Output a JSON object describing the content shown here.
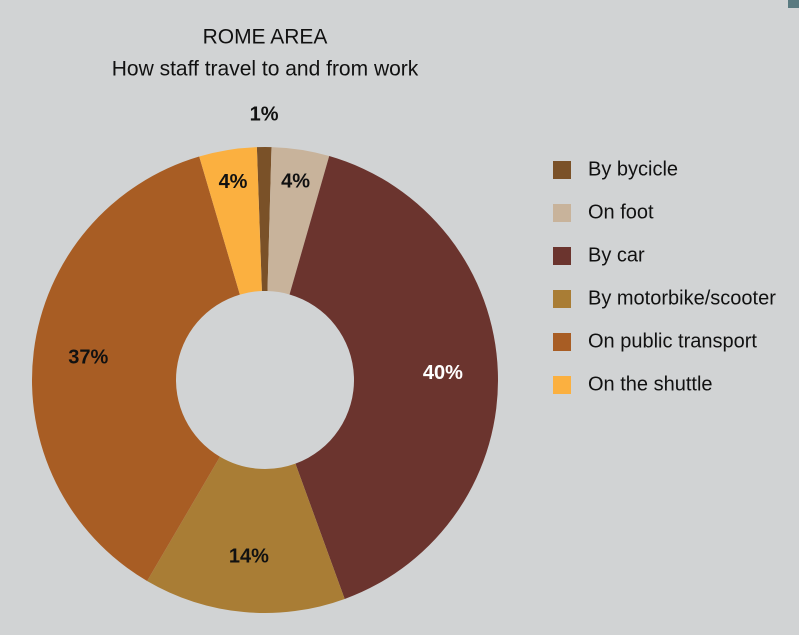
{
  "chart_data": {
    "type": "donut",
    "title": "ROME AREA",
    "subtitle": "How staff travel to and from work",
    "categories": [
      "By bycicle",
      "On foot",
      "By car",
      "By motorbike/scooter",
      "On public transport",
      "On the shuttle"
    ],
    "values": [
      1,
      4,
      40,
      14,
      37,
      4
    ],
    "value_labels": [
      "1%",
      "4%",
      "40%",
      "14%",
      "37%",
      "4%"
    ],
    "colors": [
      "#7a5128",
      "#c8b39b",
      "#6b342e",
      "#a97d35",
      "#a85d24",
      "#fbb040"
    ],
    "legend": "right"
  }
}
